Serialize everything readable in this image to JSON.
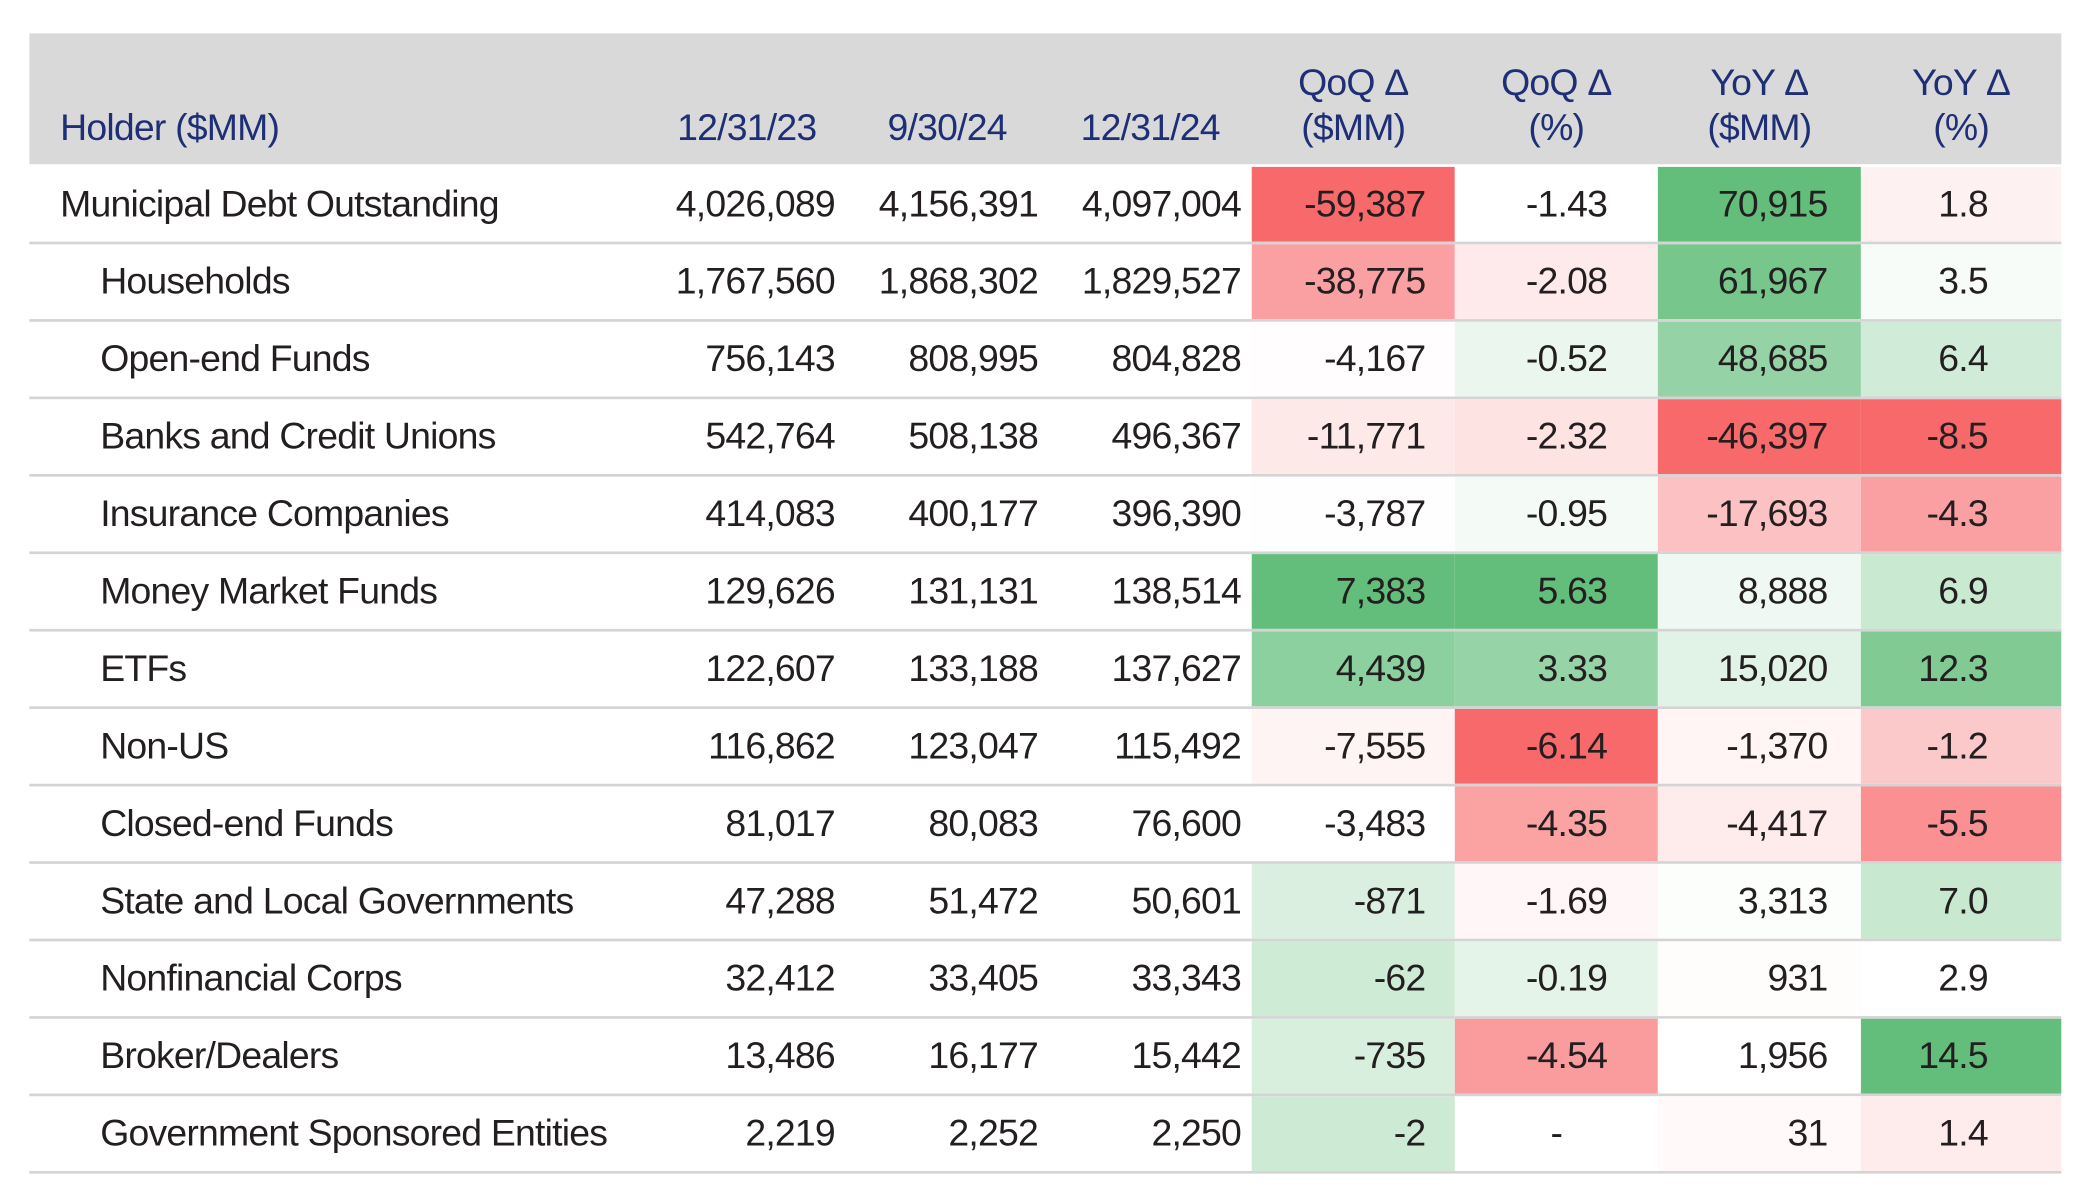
{
  "table": {
    "columns": [
      "Holder ($MM)",
      "12/31/23",
      "9/30/24",
      "12/31/24",
      "QoQ Δ\n($MM)",
      "QoQ Δ\n(%)",
      "YoY Δ\n($MM)",
      "YoY Δ\n(%)"
    ],
    "rows": [
      [
        "Municipal Debt Outstanding",
        "4,026,089",
        "4,156,391",
        "4,097,004",
        "-59,387",
        "-1.43",
        "70,915",
        "1.8"
      ],
      [
        "Households",
        "1,767,560",
        "1,868,302",
        "1,829,527",
        "-38,775",
        "-2.08",
        "61,967",
        "3.5"
      ],
      [
        "Open-end Funds",
        "756,143",
        "808,995",
        "804,828",
        "-4,167",
        "-0.52",
        "48,685",
        "6.4"
      ],
      [
        "Banks and Credit Unions",
        "542,764",
        "508,138",
        "496,367",
        "-11,771",
        "-2.32",
        "-46,397",
        "-8.5"
      ],
      [
        "Insurance Companies",
        "414,083",
        "400,177",
        "396,390",
        "-3,787",
        "-0.95",
        "-17,693",
        "-4.3"
      ],
      [
        "Money Market Funds",
        "129,626",
        "131,131",
        "138,514",
        "7,383",
        "5.63",
        "8,888",
        "6.9"
      ],
      [
        "ETFs",
        "122,607",
        "133,188",
        "137,627",
        "4,439",
        "3.33",
        "15,020",
        "12.3"
      ],
      [
        "Non-US",
        "116,862",
        "123,047",
        "115,492",
        "-7,555",
        "-6.14",
        "-1,370",
        "-1.2"
      ],
      [
        "Closed-end Funds",
        "81,017",
        "80,083",
        "76,600",
        "-3,483",
        "-4.35",
        "-4,417",
        "-5.5"
      ],
      [
        "State and Local Governments",
        "47,288",
        "51,472",
        "50,601",
        "-871",
        "-1.69",
        "3,313",
        "7.0"
      ],
      [
        "Nonfinancial Corps",
        "32,412",
        "33,405",
        "33,343",
        "-62",
        "-0.19",
        "931",
        "2.9"
      ],
      [
        "Broker/Dealers",
        "13,486",
        "16,177",
        "15,442",
        "-735",
        "-4.54",
        "1,956",
        "14.5"
      ],
      [
        "Government Sponsored Entities",
        "2,219",
        "2,252",
        "2,250",
        "-2",
        "-",
        "31",
        "1.4"
      ]
    ],
    "color_scale": {
      "low": "#f8696b",
      "mid": "#ffffff",
      "high": "#63be7b"
    }
  }
}
